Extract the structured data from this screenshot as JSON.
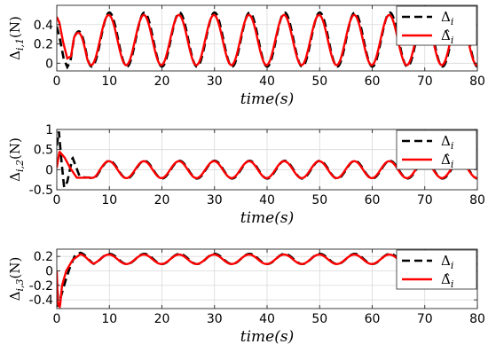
{
  "chart_data": [
    {
      "type": "line",
      "ylabel": "Δ_{i,1}(N)",
      "xlabel": "time(s)",
      "xlim": [
        0,
        80
      ],
      "ylim": [
        -0.08,
        0.6
      ],
      "xticks": [
        "0",
        "10",
        "20",
        "30",
        "40",
        "50",
        "60",
        "70",
        "80"
      ],
      "yticks": [
        {
          "v": 0,
          "label": "0"
        },
        {
          "v": 0.2,
          "label": "0.2"
        },
        {
          "v": 0.4,
          "label": "0.4"
        }
      ],
      "grid": true,
      "legend": "top-right",
      "series": [
        {
          "name": "Δ_i",
          "style": "dashed",
          "color": "#000000",
          "equation": {
            "offset": 0.245,
            "amp": 0.28,
            "period": 6.67,
            "phase": 0
          },
          "transient": [
            [
              0,
              0.38
            ],
            [
              0.6,
              0.25
            ],
            [
              1.3,
              0.05
            ],
            [
              2.0,
              -0.04
            ],
            [
              2.6,
              0.02
            ],
            [
              3.3,
              0.27
            ]
          ]
        },
        {
          "name": "Δ̂_i",
          "style": "solid",
          "color": "#ff0000",
          "equation": {
            "offset": 0.24,
            "amp": 0.26,
            "period": 6.67,
            "phase": 0.12
          },
          "transient": [
            [
              0,
              0.48
            ],
            [
              0.5,
              0.42
            ],
            [
              1.2,
              0.22
            ],
            [
              2.0,
              0.05
            ],
            [
              2.7,
              0.07
            ],
            [
              3.3,
              0.27
            ]
          ]
        }
      ]
    },
    {
      "type": "line",
      "ylabel": "Δ_{i,2}(N)",
      "xlabel": "time(s)",
      "xlim": [
        0,
        80
      ],
      "ylim": [
        -0.5,
        1.0
      ],
      "xticks": [
        "0",
        "10",
        "20",
        "30",
        "40",
        "50",
        "60",
        "70",
        "80"
      ],
      "yticks": [
        {
          "v": -0.5,
          "label": "-0.5"
        },
        {
          "v": 0,
          "label": "0"
        },
        {
          "v": 0.5,
          "label": "0.5"
        },
        {
          "v": 1.0,
          "label": "1"
        }
      ],
      "grid": true,
      "legend": "top-right",
      "series": [
        {
          "name": "Δ_i",
          "style": "dashed",
          "color": "#000000",
          "equation": {
            "offset": 0.0,
            "amp": 0.22,
            "period": 6.67,
            "phase": 0
          },
          "transient": [
            [
              0,
              0.6
            ],
            [
              0.4,
              0.95
            ],
            [
              0.9,
              0.2
            ],
            [
              1.4,
              -0.45
            ],
            [
              2.0,
              -0.3
            ],
            [
              3.0,
              0.3
            ],
            [
              4.3,
              -0.15
            ],
            [
              5.5,
              -0.2
            ]
          ]
        },
        {
          "name": "Δ̂_i",
          "style": "solid",
          "color": "#ff0000",
          "equation": {
            "offset": 0.0,
            "amp": 0.21,
            "period": 6.67,
            "phase": 0.1
          },
          "transient": [
            [
              0,
              0.05
            ],
            [
              0.5,
              0.45
            ],
            [
              1.5,
              0.3
            ],
            [
              2.5,
              0.05
            ],
            [
              3.8,
              -0.2
            ],
            [
              5.5,
              -0.2
            ]
          ]
        }
      ]
    },
    {
      "type": "line",
      "ylabel": "Δ_{i,3}(N)",
      "xlabel": "time(s)",
      "xlim": [
        0,
        80
      ],
      "ylim": [
        -0.52,
        0.3
      ],
      "xticks": [
        "0",
        "10",
        "20",
        "30",
        "40",
        "50",
        "60",
        "70",
        "80"
      ],
      "yticks": [
        {
          "v": -0.4,
          "label": "-0.4"
        },
        {
          "v": -0.2,
          "label": "-0.2"
        },
        {
          "v": 0,
          "label": "0"
        },
        {
          "v": 0.2,
          "label": "0.2"
        }
      ],
      "grid": true,
      "legend": "top-right",
      "series": [
        {
          "name": "Δ_i",
          "style": "dashed",
          "color": "#000000",
          "equation": {
            "offset": 0.165,
            "amp": 0.07,
            "period": 6.67,
            "phase": 0
          },
          "transient": [
            [
              0,
              -0.1
            ],
            [
              0.3,
              -0.5
            ],
            [
              0.8,
              -0.35
            ],
            [
              1.6,
              -0.15
            ],
            [
              2.5,
              0.05
            ],
            [
              3.5,
              0.22
            ],
            [
              4.5,
              0.25
            ]
          ]
        },
        {
          "name": "Δ̂_i",
          "style": "solid",
          "color": "#ff0000",
          "equation": {
            "offset": 0.16,
            "amp": 0.065,
            "period": 6.67,
            "phase": 0.1
          },
          "transient": [
            [
              0,
              0.0
            ],
            [
              0.2,
              -0.45
            ],
            [
              0.6,
              -0.5
            ],
            [
              1.0,
              -0.2
            ],
            [
              1.8,
              0.0
            ],
            [
              3.0,
              0.15
            ],
            [
              4.5,
              0.23
            ]
          ]
        }
      ]
    }
  ]
}
